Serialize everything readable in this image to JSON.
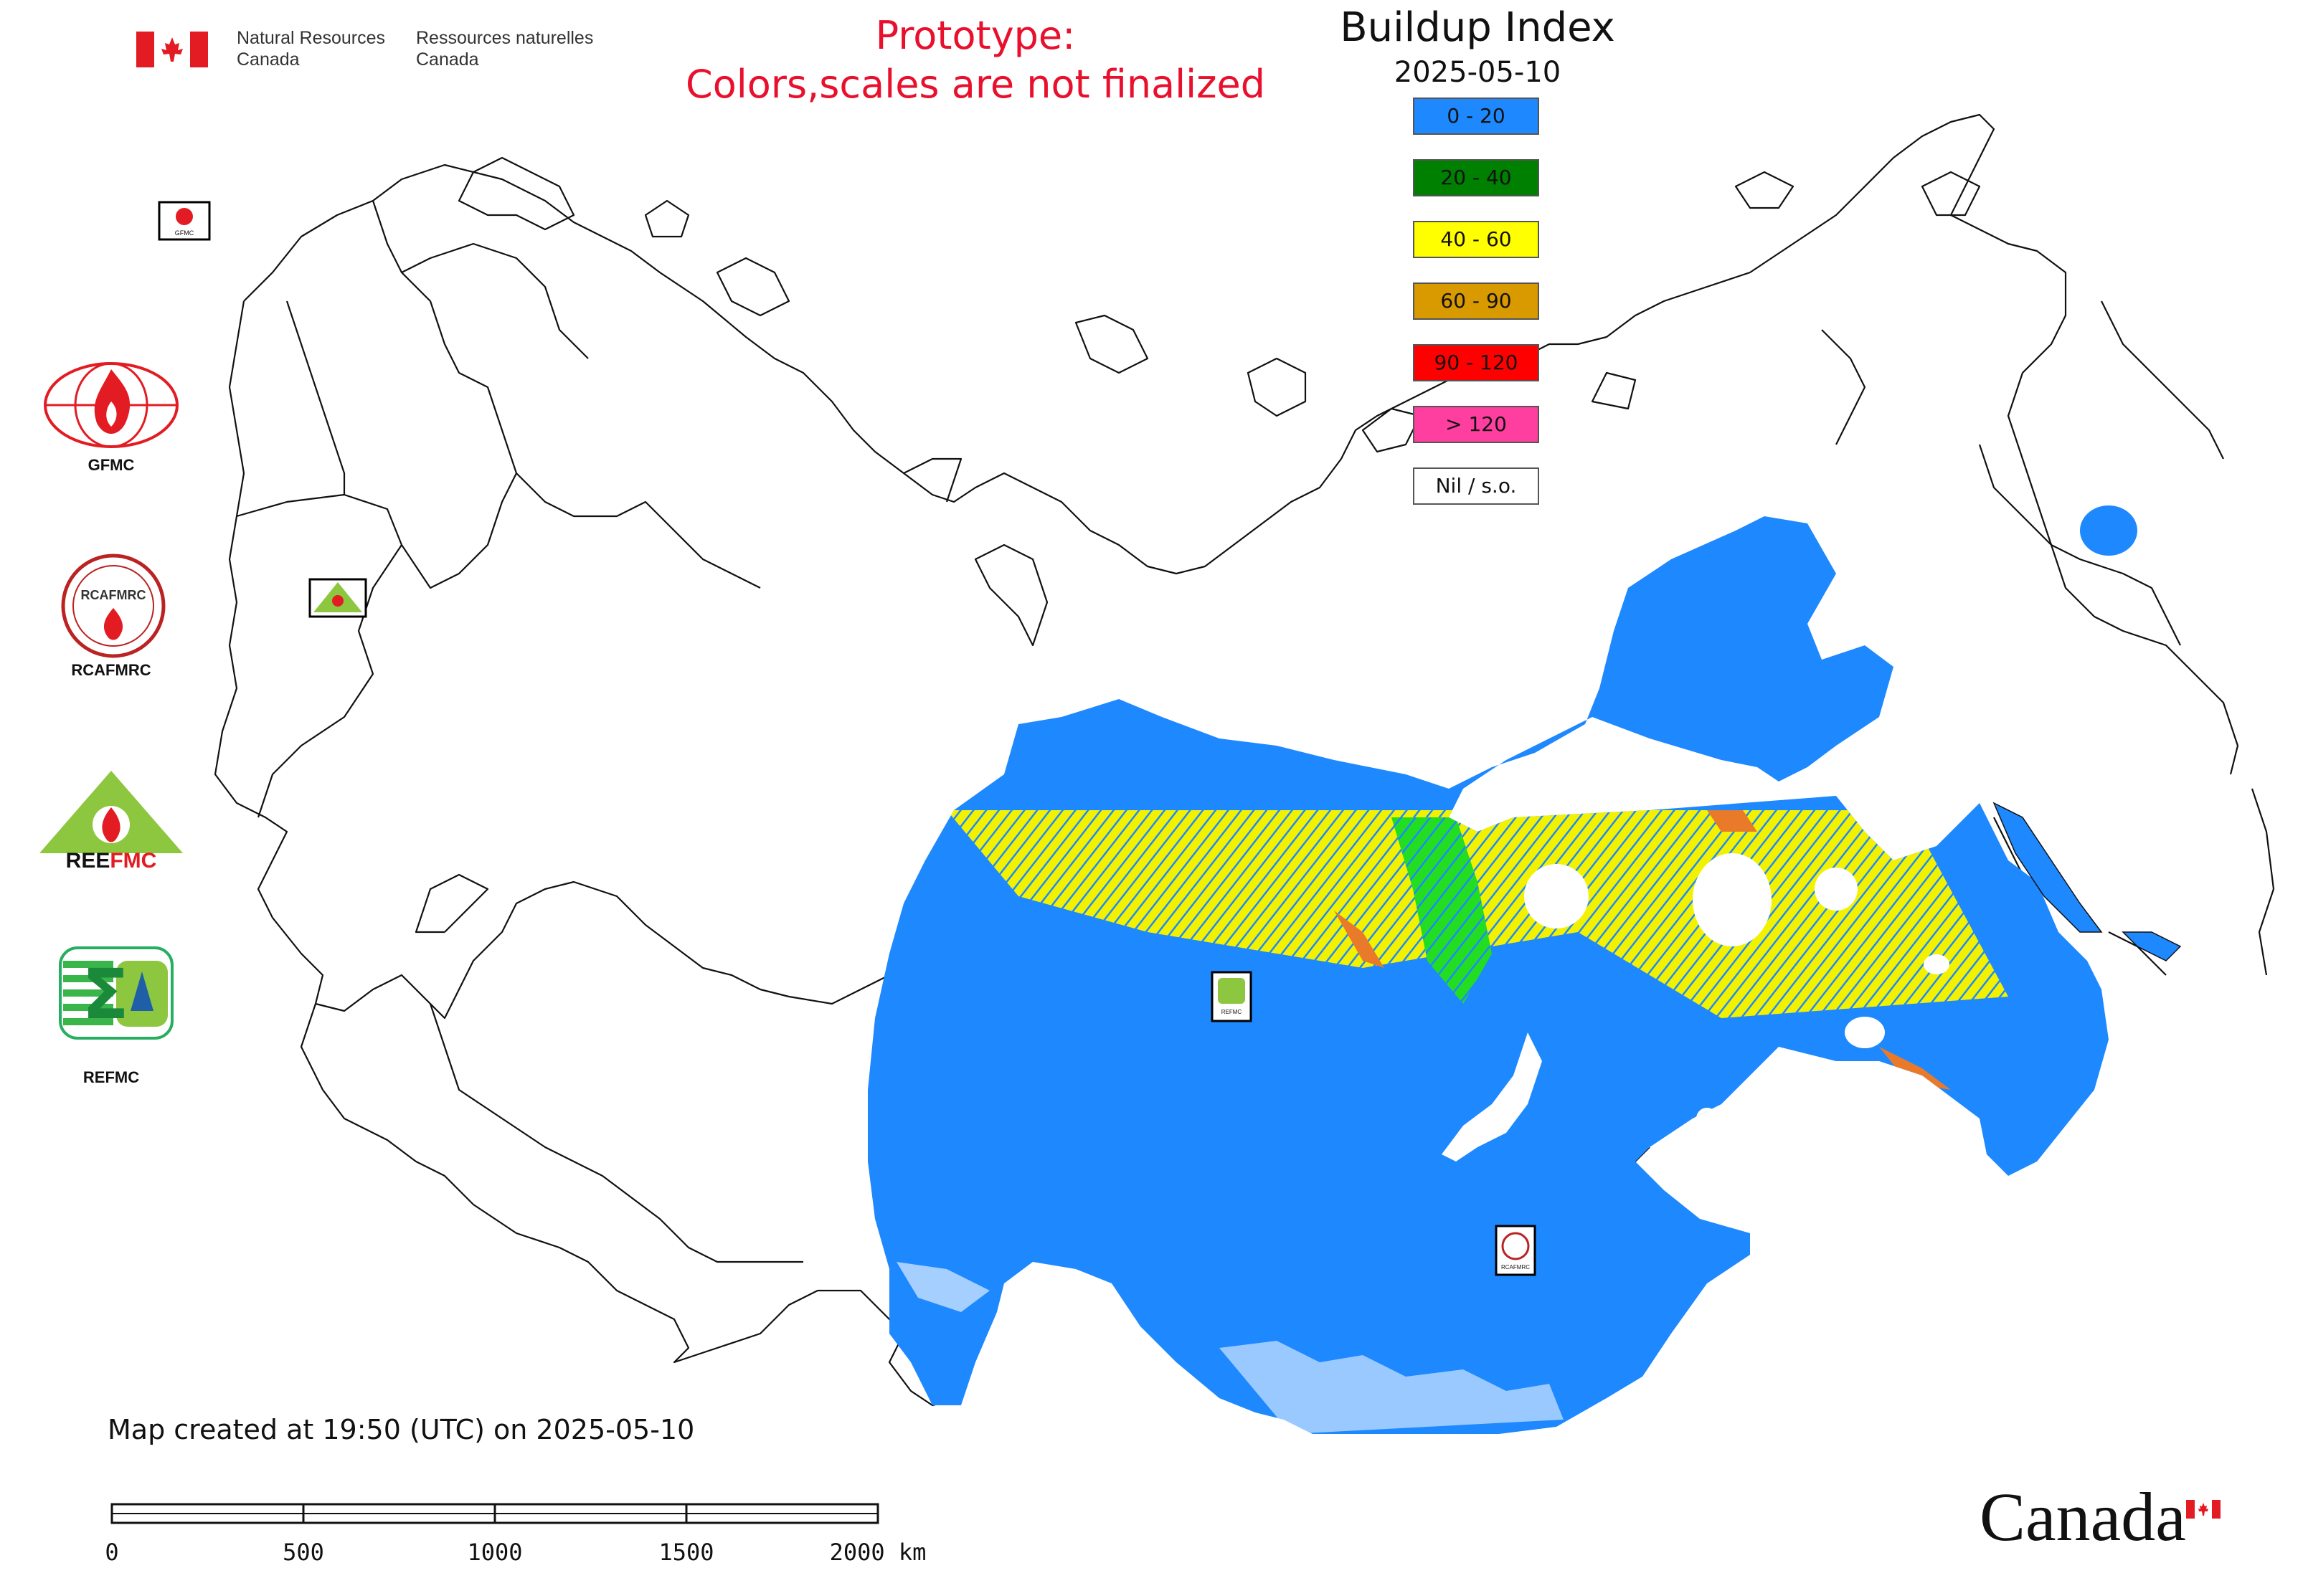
{
  "header": {
    "department_en": "Natural Resources\nCanada",
    "department_fr": "Ressources naturelles\nCanada",
    "prototype_line1": "Prototype:",
    "prototype_line2": "Colors,scales are not finalized"
  },
  "map": {
    "title": "Buildup Index",
    "date": "2025-05-10",
    "legend": [
      {
        "label": "0 - 20",
        "color": "#1e88ff"
      },
      {
        "label": "20 - 40",
        "color": "#008000"
      },
      {
        "label": "40 - 60",
        "color": "#ffff00"
      },
      {
        "label": "60 - 90",
        "color": "#d99a00"
      },
      {
        "label": "90 - 120",
        "color": "#ff0000"
      },
      {
        "label": "> 120",
        "color": "#ff3fa0"
      },
      {
        "label": "Nil / s.o.",
        "color": "#ffffff"
      }
    ]
  },
  "logos": [
    {
      "label": "GFMC",
      "icon": "gfmc-logo-icon"
    },
    {
      "label": "RCAFMRC",
      "icon": "rcafmrc-logo-icon"
    },
    {
      "label": "REEFMC",
      "icon": "reefmc-logo-icon"
    },
    {
      "label": "REFMC",
      "icon": "refmc-logo-icon"
    }
  ],
  "footer": {
    "created": "Map created at 19:50 (UTC) on 2025-05-10",
    "scale_labels": [
      "0",
      "500",
      "1000",
      "1500",
      "2000 km"
    ],
    "wordmark": "Canada"
  }
}
